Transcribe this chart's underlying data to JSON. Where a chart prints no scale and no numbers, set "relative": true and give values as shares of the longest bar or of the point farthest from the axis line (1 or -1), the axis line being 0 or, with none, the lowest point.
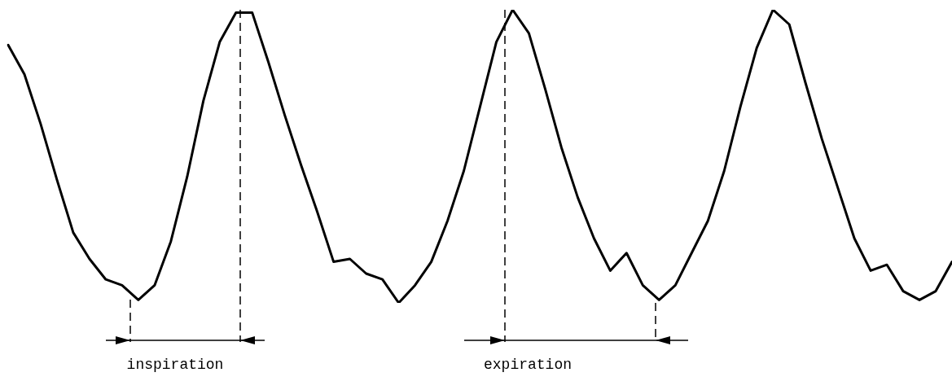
{
  "chart_data": {
    "type": "line",
    "relative": true,
    "color": "#000000",
    "marker": "none",
    "line_style": "solid",
    "legend": false,
    "grid": false,
    "categories": [
      null,
      null,
      null,
      null,
      null,
      null,
      null,
      null,
      null,
      null,
      null,
      null,
      null,
      null,
      null,
      null,
      null,
      null,
      null,
      null,
      null,
      null,
      null,
      null,
      null,
      null,
      null,
      null,
      null,
      null,
      null,
      null,
      null,
      null,
      null,
      null,
      null,
      null,
      null,
      null,
      null,
      null,
      null,
      null,
      null,
      null,
      null,
      null,
      null,
      null,
      null,
      null,
      null,
      null,
      null,
      null,
      null,
      null,
      null
    ],
    "values": [
      0.88,
      0.78,
      0.61,
      0.42,
      0.24,
      0.15,
      0.08,
      0.06,
      0.01,
      0.06,
      0.21,
      0.43,
      0.69,
      0.89,
      0.99,
      0.99,
      0.82,
      0.64,
      0.47,
      0.31,
      0.14,
      0.15,
      0.1,
      0.08,
      0,
      0.06,
      0.14,
      0.28,
      0.45,
      0.67,
      0.89,
      1,
      0.92,
      0.73,
      0.53,
      0.36,
      0.22,
      0.11,
      0.17,
      0.06,
      0.01,
      0.06,
      0.17,
      0.28,
      0.45,
      0.67,
      0.87,
      1,
      0.95,
      0.75,
      0.56,
      0.39,
      0.22,
      0.11,
      0.13,
      0.04,
      0.01,
      0.04,
      0.14
    ],
    "annotations": [
      "inspiration",
      "expiration"
    ]
  }
}
